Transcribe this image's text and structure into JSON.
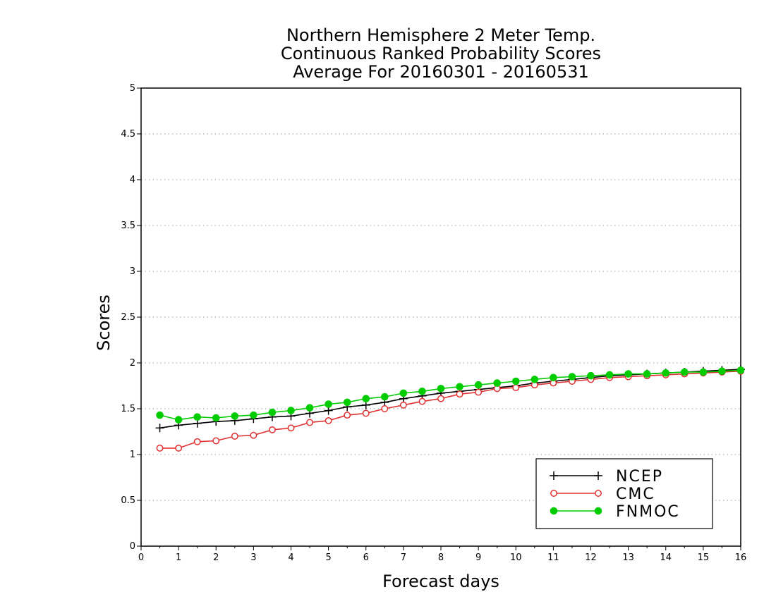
{
  "chart_data": {
    "type": "line",
    "title": [
      "Northern Hemisphere 2 Meter Temp.",
      "Continuous Ranked Probability Scores",
      "Average For 20160301 - 20160531"
    ],
    "xlabel": "Forecast days",
    "ylabel": "Scores",
    "xlim": [
      0,
      16
    ],
    "ylim": [
      0,
      5
    ],
    "xticks": [
      "0",
      "1",
      "2",
      "3",
      "4",
      "5",
      "6",
      "7",
      "8",
      "9",
      "10",
      "11",
      "12",
      "13",
      "14",
      "15",
      "16"
    ],
    "yticks": [
      "0",
      "0.5",
      "1",
      "1.5",
      "2",
      "2.5",
      "3",
      "3.5",
      "4",
      "4.5",
      "5"
    ],
    "grid": "horizontal dotted",
    "legend_position": "bottom-right",
    "x": [
      0.5,
      1,
      1.5,
      2,
      2.5,
      3,
      3.5,
      4,
      4.5,
      5,
      5.5,
      6,
      6.5,
      7,
      7.5,
      8,
      8.5,
      9,
      9.5,
      10,
      10.5,
      11,
      11.5,
      12,
      12.5,
      13,
      13.5,
      14,
      14.5,
      15,
      15.5,
      16
    ],
    "series": [
      {
        "name": "NCEP",
        "color": "#000000",
        "marker": "plus",
        "values": [
          1.29,
          1.32,
          1.34,
          1.36,
          1.37,
          1.39,
          1.41,
          1.42,
          1.45,
          1.48,
          1.52,
          1.54,
          1.57,
          1.61,
          1.64,
          1.67,
          1.69,
          1.71,
          1.73,
          1.75,
          1.78,
          1.8,
          1.82,
          1.84,
          1.86,
          1.87,
          1.88,
          1.89,
          1.9,
          1.91,
          1.92,
          1.93
        ]
      },
      {
        "name": "CMC",
        "color": "#e03030",
        "marker": "open-circle",
        "values": [
          1.07,
          1.07,
          1.14,
          1.15,
          1.2,
          1.21,
          1.27,
          1.29,
          1.35,
          1.37,
          1.43,
          1.45,
          1.5,
          1.54,
          1.58,
          1.61,
          1.66,
          1.68,
          1.72,
          1.73,
          1.76,
          1.78,
          1.8,
          1.82,
          1.84,
          1.85,
          1.86,
          1.87,
          1.88,
          1.89,
          1.9,
          1.91
        ]
      },
      {
        "name": "FNMOC",
        "color": "#00cc00",
        "marker": "filled-circle",
        "values": [
          1.43,
          1.38,
          1.41,
          1.4,
          1.42,
          1.43,
          1.46,
          1.48,
          1.51,
          1.55,
          1.57,
          1.61,
          1.63,
          1.67,
          1.69,
          1.72,
          1.74,
          1.76,
          1.78,
          1.8,
          1.82,
          1.84,
          1.85,
          1.86,
          1.87,
          1.88,
          1.88,
          1.89,
          1.9,
          1.9,
          1.91,
          1.92
        ]
      }
    ]
  }
}
